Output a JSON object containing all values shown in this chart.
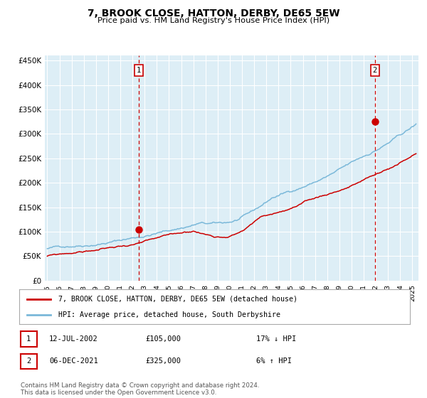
{
  "title": "7, BROOK CLOSE, HATTON, DERBY, DE65 5EW",
  "subtitle": "Price paid vs. HM Land Registry's House Price Index (HPI)",
  "background_color": "#ffffff",
  "plot_bg_color": "#ddeef6",
  "grid_color": "#ffffff",
  "ylabel_ticks": [
    "£0",
    "£50K",
    "£100K",
    "£150K",
    "£200K",
    "£250K",
    "£300K",
    "£350K",
    "£400K",
    "£450K"
  ],
  "ytick_values": [
    0,
    50000,
    100000,
    150000,
    200000,
    250000,
    300000,
    350000,
    400000,
    450000
  ],
  "ylim": [
    0,
    460000
  ],
  "xlim_start": 1994.8,
  "xlim_end": 2025.5,
  "hpi_color": "#7ab8d9",
  "price_color": "#cc0000",
  "sale1_date": 2002.53,
  "sale1_price": 105000,
  "sale1_label": "1",
  "sale2_date": 2021.92,
  "sale2_price": 325000,
  "sale2_label": "2",
  "vline_color": "#cc0000",
  "marker_color": "#cc0000",
  "legend_line1": "7, BROOK CLOSE, HATTON, DERBY, DE65 5EW (detached house)",
  "legend_line2": "HPI: Average price, detached house, South Derbyshire",
  "annotation1_date": "12-JUL-2002",
  "annotation1_price": "£105,000",
  "annotation1_hpi": "17% ↓ HPI",
  "annotation2_date": "06-DEC-2021",
  "annotation2_price": "£325,000",
  "annotation2_hpi": "6% ↑ HPI",
  "footer": "Contains HM Land Registry data © Crown copyright and database right 2024.\nThis data is licensed under the Open Government Licence v3.0."
}
